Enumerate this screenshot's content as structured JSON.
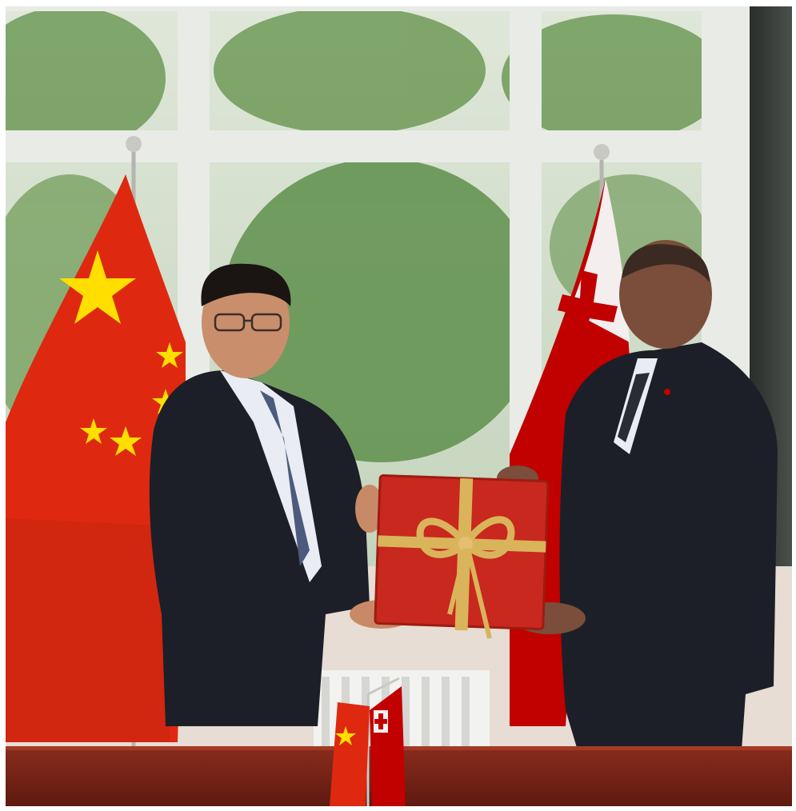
{
  "photo": {
    "scene": "",
    "colors": {
      "china_red": "#de2910",
      "china_star": "#ffde00",
      "tonga_red": "#c10000",
      "suit": "#1c1f27",
      "gift_box": "#c8281e",
      "ribbon": "#d9b45a",
      "table": "#7a2417",
      "foliage": "#6f9a58"
    },
    "icons": [
      "china-flag",
      "tonga-flag",
      "gift-box-icon",
      "desk-flag-stand"
    ]
  }
}
